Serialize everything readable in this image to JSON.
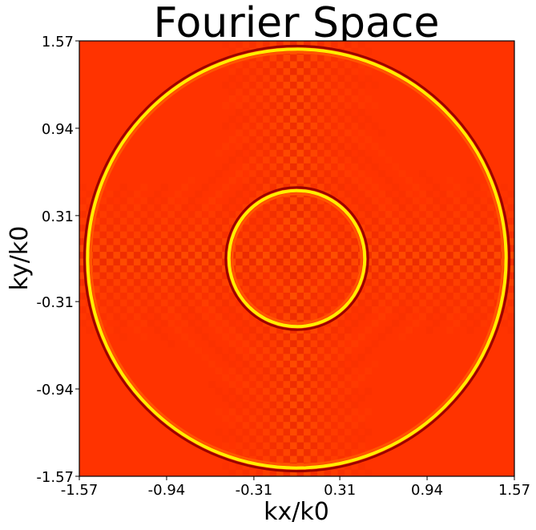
{
  "chart_data": {
    "type": "heatmap",
    "title": "Fourier Space",
    "xlabel": "kx/k0",
    "ylabel": "ky/k0",
    "xlim": [
      -1.57,
      1.57
    ],
    "ylim": [
      -1.57,
      1.57
    ],
    "x_ticks": [
      "-1.57",
      "-0.94",
      "-0.31",
      "0.31",
      "0.94",
      "1.57"
    ],
    "y_ticks": [
      "1.57",
      "0.94",
      "0.31",
      "-0.31",
      "-0.94",
      "-1.57"
    ],
    "colormap": "hot",
    "grid": false,
    "colors": {
      "background": "#ff3300",
      "dark": "#9a0000",
      "mid": "#ff5500",
      "bright": "#ffee00",
      "white": "#ffffff"
    },
    "rings": [
      {
        "name": "outer",
        "radius": 1.51
      },
      {
        "name": "inner",
        "radius": 0.49
      }
    ]
  }
}
